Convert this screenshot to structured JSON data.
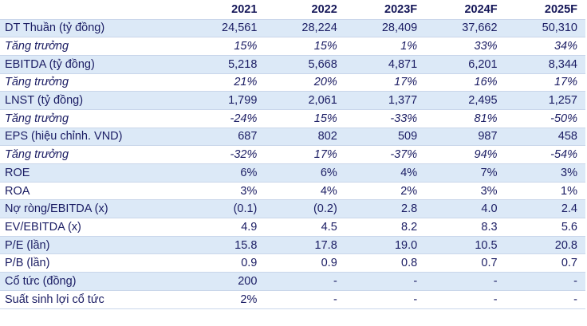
{
  "table": {
    "header": [
      "",
      "2021",
      "2022",
      "2023F",
      "2024F",
      "2025F"
    ],
    "rows": [
      {
        "label": "DT Thuần (tỷ đồng)",
        "values": [
          "24,561",
          "28,224",
          "28,409",
          "37,662",
          "50,310"
        ],
        "italic": false
      },
      {
        "label": "Tăng trưởng",
        "values": [
          "15%",
          "15%",
          "1%",
          "33%",
          "34%"
        ],
        "italic": true
      },
      {
        "label": "EBITDA (tỷ đồng)",
        "values": [
          "5,218",
          "5,668",
          "4,871",
          "6,201",
          "8,344"
        ],
        "italic": false
      },
      {
        "label": "Tăng trưởng",
        "values": [
          "21%",
          "20%",
          "17%",
          "16%",
          "17%"
        ],
        "italic": true
      },
      {
        "label": "LNST (tỷ đồng)",
        "values": [
          "1,799",
          "2,061",
          "1,377",
          "2,495",
          "1,257"
        ],
        "italic": false
      },
      {
        "label": "Tăng trưởng",
        "values": [
          "-24%",
          "15%",
          "-33%",
          "81%",
          "-50%"
        ],
        "italic": true
      },
      {
        "label": "EPS (hiệu chỉnh. VND)",
        "values": [
          "687",
          "802",
          "509",
          "987",
          "458"
        ],
        "italic": false
      },
      {
        "label": "Tăng trưởng",
        "values": [
          "-32%",
          "17%",
          "-37%",
          "94%",
          "-54%"
        ],
        "italic": true
      },
      {
        "label": "ROE",
        "values": [
          "6%",
          "6%",
          "4%",
          "7%",
          "3%"
        ],
        "italic": false
      },
      {
        "label": "ROA",
        "values": [
          "3%",
          "4%",
          "2%",
          "3%",
          "1%"
        ],
        "italic": false
      },
      {
        "label": "Nợ ròng/EBITDA (x)",
        "values": [
          "(0.1)",
          "(0.2)",
          "2.8",
          "4.0",
          "2.4"
        ],
        "italic": false
      },
      {
        "label": "EV/EBITDA (x)",
        "values": [
          "4.9",
          "4.5",
          "8.2",
          "8.3",
          "5.6"
        ],
        "italic": false
      },
      {
        "label": "P/E (lần)",
        "values": [
          "15.8",
          "17.8",
          "19.0",
          "10.5",
          "20.8"
        ],
        "italic": false
      },
      {
        "label": "P/B (lần)",
        "values": [
          "0.9",
          "0.9",
          "0.8",
          "0.7",
          "0.7"
        ],
        "italic": false
      },
      {
        "label": "Cổ tức (đồng)",
        "values": [
          "200",
          "-",
          "-",
          "-",
          "-"
        ],
        "italic": false
      },
      {
        "label": "Suất sinh lợi cổ tức",
        "values": [
          "2%",
          "-",
          "-",
          "-",
          "-"
        ],
        "italic": false
      }
    ]
  },
  "colors": {
    "text": "#1a1c63",
    "row_shade": "#dce9f7",
    "row_border": "#c9d6ea"
  }
}
